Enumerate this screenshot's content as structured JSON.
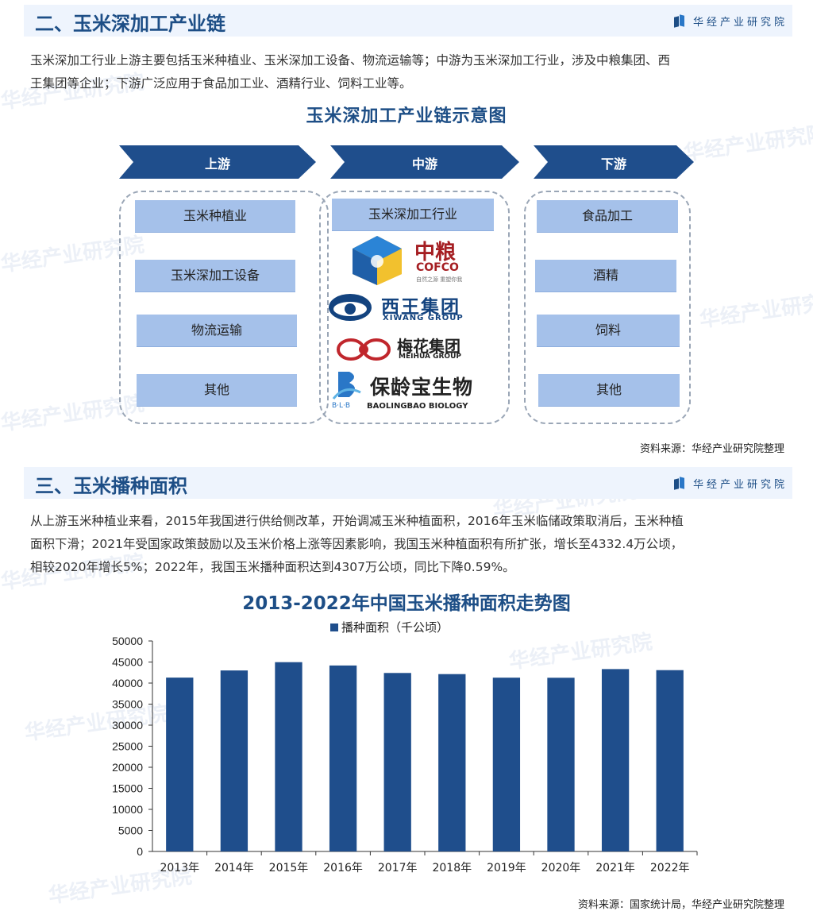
{
  "section2": {
    "title": "二、玉米深加工产业链",
    "brand": "华经产业研究院",
    "paragraph_line1": "玉米深加工行业上游主要包括玉米种植业、玉米深加工设备、物流运输等；中游为玉米深加工行业，涉及中粮集团、西",
    "paragraph_line2": "王集团等企业；下游广泛应用于食品加工业、酒精行业、饲料工业等。",
    "diagram_title": "玉米深加工产业链示意图",
    "stages": [
      "上游",
      "中游",
      "下游"
    ],
    "upstream": [
      "玉米种植业",
      "玉米深加工设备",
      "物流运输",
      "其他"
    ],
    "midstream_header": "玉米深加工行业",
    "logos": {
      "cofco_cn": "中粮",
      "cofco_en": "COFCO",
      "cofco_slogan": "自然之源 重塑你我",
      "xiwang_cn": "西王集团",
      "xiwang_en": "XIWANG GROUP",
      "meihua_cn": "梅花集团",
      "meihua_en": "MEIHUA GROUP",
      "blb_cn": "保龄宝生物",
      "blb_mark": "B·L·B",
      "blb_en": "BAOLINGBAO BIOLOGY"
    },
    "downstream": [
      "食品加工",
      "酒精",
      "饲料",
      "其他"
    ],
    "source": "资料来源：华经产业研究院整理"
  },
  "section3": {
    "title": "三、玉米播种面积",
    "brand": "华经产业研究院",
    "paragraph_line1": "从上游玉米种植业来看，2015年我国进行供给侧改革，开始调减玉米种植面积，2016年玉米临储政策取消后，玉米种植",
    "paragraph_line2": "面积下滑；2021年受国家政策鼓励以及玉米价格上涨等因素影响，我国玉米种植面积有所扩张，增长至4332.4万公顷，",
    "paragraph_line3": "相较2020年增长5%；2022年，我国玉米播种面积达到4307万公顷，同比下降0.59%。",
    "source": "资料来源：国家统计局，华经产业研究院整理"
  },
  "watermark": "华经产业研究院",
  "colors": {
    "primary": "#1d4e86",
    "bar": "#1f4e8c",
    "box": "#a5c1ea",
    "header_bg": "#eef4fd"
  },
  "chart_data": {
    "type": "bar",
    "title": "2013-2022年中国玉米播种面积走势图",
    "categories": [
      "2013年",
      "2014年",
      "2015年",
      "2016年",
      "2017年",
      "2018年",
      "2019年",
      "2020年",
      "2021年",
      "2022年"
    ],
    "series": [
      {
        "name": "播种面积（千公顷）",
        "values": [
          41300,
          42997,
          44968,
          44178,
          42399,
          42130,
          41284,
          41264,
          43324,
          43070
        ]
      }
    ],
    "ylim": [
      0,
      50000
    ],
    "yticks": [
      0,
      5000,
      10000,
      15000,
      20000,
      25000,
      30000,
      35000,
      40000,
      45000,
      50000
    ],
    "legend_position": "top",
    "grid": false
  }
}
